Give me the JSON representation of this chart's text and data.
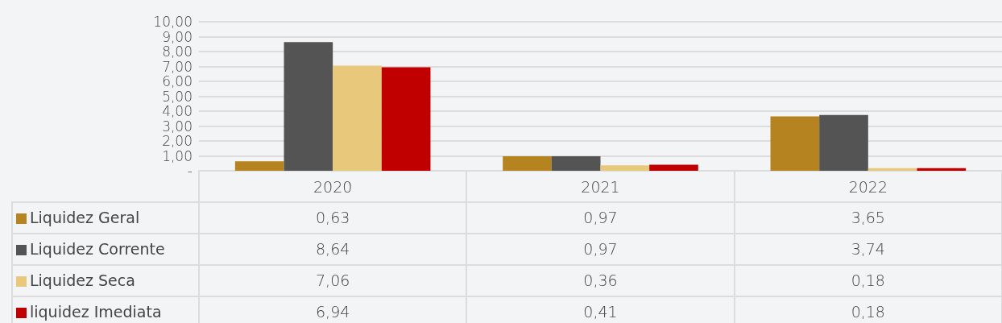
{
  "chart_data": {
    "type": "bar",
    "categories": [
      "2020",
      "2021",
      "2022"
    ],
    "series": [
      {
        "name": "Liquidez Geral",
        "color": "#b5831f",
        "values": [
          0.63,
          0.97,
          3.65
        ],
        "value_labels": [
          "0,63",
          "0,97",
          "3,65"
        ]
      },
      {
        "name": "Liquidez Corrente",
        "color": "#545454",
        "values": [
          8.64,
          0.97,
          3.74
        ],
        "value_labels": [
          "8,64",
          "0,97",
          "3,74"
        ]
      },
      {
        "name": "Liquidez Seca",
        "color": "#e8c87a",
        "values": [
          7.06,
          0.36,
          0.18
        ],
        "value_labels": [
          "7,06",
          "0,36",
          "0,18"
        ]
      },
      {
        "name": "liquidez Imediata",
        "color": "#c00000",
        "values": [
          6.94,
          0.41,
          0.18
        ],
        "value_labels": [
          "6,94",
          "0,41",
          "0,18"
        ]
      }
    ],
    "ylim": [
      0,
      10
    ],
    "yticks": [
      {
        "value": 0,
        "label": "-"
      },
      {
        "value": 1,
        "label": "1,00"
      },
      {
        "value": 2,
        "label": "2,00"
      },
      {
        "value": 3,
        "label": "3,00"
      },
      {
        "value": 4,
        "label": "4,00"
      },
      {
        "value": 5,
        "label": "5,00"
      },
      {
        "value": 6,
        "label": "6,00"
      },
      {
        "value": 7,
        "label": "7,00"
      },
      {
        "value": 8,
        "label": "8,00"
      },
      {
        "value": 9,
        "label": "9,00"
      },
      {
        "value": 10,
        "label": "10,00"
      }
    ],
    "grid": "y",
    "legend": "bottom"
  }
}
